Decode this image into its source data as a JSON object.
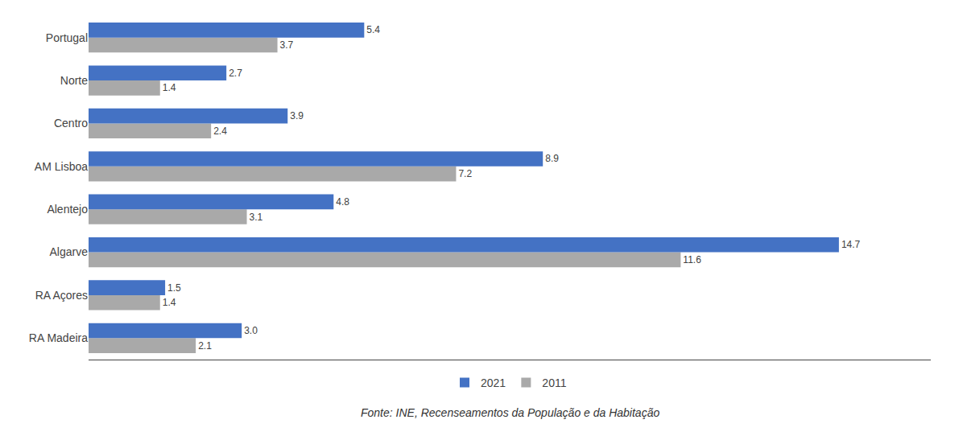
{
  "chart_data": {
    "type": "bar",
    "orientation": "horizontal",
    "categories": [
      "RA Madeira",
      "RA Açores",
      "Algarve",
      "Alentejo",
      "AM Lisboa",
      "Centro",
      "Norte",
      "Portugal"
    ],
    "series": [
      {
        "name": "2021",
        "color": "#4472C4",
        "values": [
          3.0,
          1.5,
          14.7,
          4.8,
          8.9,
          3.9,
          2.7,
          5.4
        ],
        "value_labels": [
          "3.0",
          "1.5",
          "14.7",
          "4.8",
          "8.9",
          "3.9",
          "2.7",
          "5.4"
        ]
      },
      {
        "name": "2011",
        "color": "#A9A9A9",
        "values": [
          2.1,
          1.4,
          11.6,
          3.1,
          7.2,
          2.4,
          1.4,
          3.7
        ],
        "value_labels": [
          "2.1",
          "1.4",
          "11.6",
          "3.1",
          "7.2",
          "2.4",
          "1.4",
          "3.7"
        ]
      }
    ],
    "xlim": [
      0,
      16.5
    ],
    "data_labels": true,
    "tick_labels": "y",
    "grid": false,
    "legend": "bottom",
    "annotations": [
      "Fonte: INE, Recenseamentos da População e da Habitação"
    ]
  }
}
